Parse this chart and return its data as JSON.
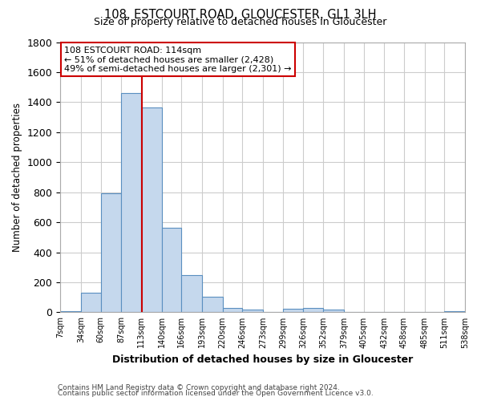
{
  "title": "108, ESTCOURT ROAD, GLOUCESTER, GL1 3LH",
  "subtitle": "Size of property relative to detached houses in Gloucester",
  "xlabel": "Distribution of detached houses by size in Gloucester",
  "ylabel": "Number of detached properties",
  "bar_edges": [
    7,
    34,
    60,
    87,
    113,
    140,
    166,
    193,
    220,
    246,
    273,
    299,
    326,
    352,
    379,
    405,
    432,
    458,
    485,
    511,
    538
  ],
  "bar_heights": [
    10,
    130,
    793,
    1461,
    1365,
    565,
    246,
    106,
    28,
    20,
    0,
    25,
    30,
    20,
    0,
    0,
    0,
    0,
    0,
    10
  ],
  "bar_color": "#c5d8ed",
  "bar_edge_color": "#5a8fc0",
  "tick_labels": [
    "7sqm",
    "34sqm",
    "60sqm",
    "87sqm",
    "113sqm",
    "140sqm",
    "166sqm",
    "193sqm",
    "220sqm",
    "246sqm",
    "273sqm",
    "299sqm",
    "326sqm",
    "352sqm",
    "379sqm",
    "405sqm",
    "432sqm",
    "458sqm",
    "485sqm",
    "511sqm",
    "538sqm"
  ],
  "ylim": [
    0,
    1800
  ],
  "yticks": [
    0,
    200,
    400,
    600,
    800,
    1000,
    1200,
    1400,
    1600,
    1800
  ],
  "property_size": 114,
  "vline_color": "#cc0000",
  "annotation_line1": "108 ESTCOURT ROAD: 114sqm",
  "annotation_line2": "← 51% of detached houses are smaller (2,428)",
  "annotation_line3": "49% of semi-detached houses are larger (2,301) →",
  "annotation_box_color": "#ffffff",
  "annotation_box_edge_color": "#cc0000",
  "footer1": "Contains HM Land Registry data © Crown copyright and database right 2024.",
  "footer2": "Contains public sector information licensed under the Open Government Licence v3.0.",
  "grid_color": "#cccccc",
  "background_color": "#ffffff",
  "fig_width": 6.0,
  "fig_height": 5.0
}
